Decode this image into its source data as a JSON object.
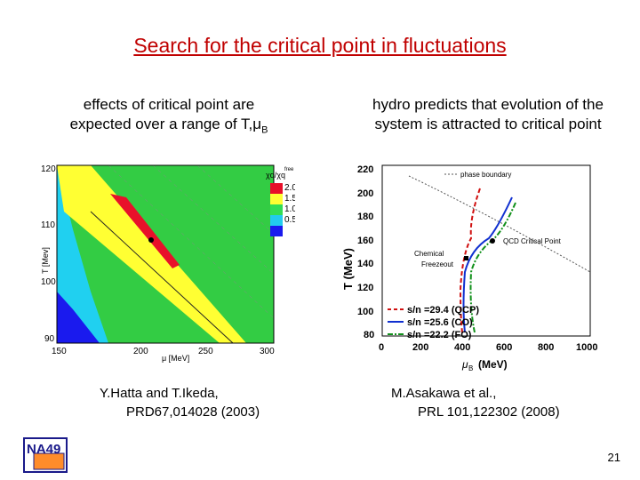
{
  "title": "Search for the critical point in fluctuations",
  "left_caption": {
    "line1": "effects of critical point are",
    "line2": "expected over a range of T,μ",
    "line2_sub": "B"
  },
  "right_caption": {
    "line1": "hydro predicts that evolution of the",
    "line2": "system is attracted to critical point"
  },
  "left_plot": {
    "ylabel": "T [Mev]",
    "xlabel": "μ [MeV]",
    "yticks": [
      "120",
      "110",
      "100",
      "90"
    ],
    "xticks": [
      "150",
      "200",
      "250",
      "300"
    ],
    "legend_title": "χq/χq",
    "legend_title_sup": "free",
    "legend": [
      {
        "label": "2.0",
        "color": "#e8102a"
      },
      {
        "label": "1.5",
        "color": "#ffff33"
      },
      {
        "label": "1.0",
        "color": "#33dd55"
      },
      {
        "label": "0.5",
        "color": "#22ccee"
      },
      {
        "label": "",
        "color": "#1a1aee"
      }
    ]
  },
  "right_plot": {
    "ylabel": "T (MeV)",
    "xlabel": "μ",
    "xlabel_sub": "B",
    "xlabel_unit": "(MeV)",
    "yticks": [
      "220",
      "200",
      "180",
      "160",
      "140",
      "120",
      "100",
      "80"
    ],
    "xticks": [
      "0",
      "200",
      "400",
      "600",
      "800",
      "1000"
    ],
    "phase_boundary": "phase boundary",
    "qcd_cp": "QCD Critical Point",
    "chemical": "Chemical",
    "freezeout": "Freezeout",
    "legend": [
      {
        "label": "s/n =29.4 (QCP)",
        "color": "#d01010"
      },
      {
        "label": "s/n =25.6 (CO)",
        "color": "#1030d0"
      },
      {
        "label": "s/n =22.2 (FO)",
        "color": "#10901a"
      }
    ]
  },
  "ref_left": {
    "line1": "Y.Hatta and T.Ikeda,",
    "line2": "PRD67,014028 (2003)"
  },
  "ref_right": {
    "line1": "M.Asakawa et al.,",
    "line2": "PRL 101,122302 (2008)"
  },
  "logo_text": "NA49",
  "page_number": "21"
}
